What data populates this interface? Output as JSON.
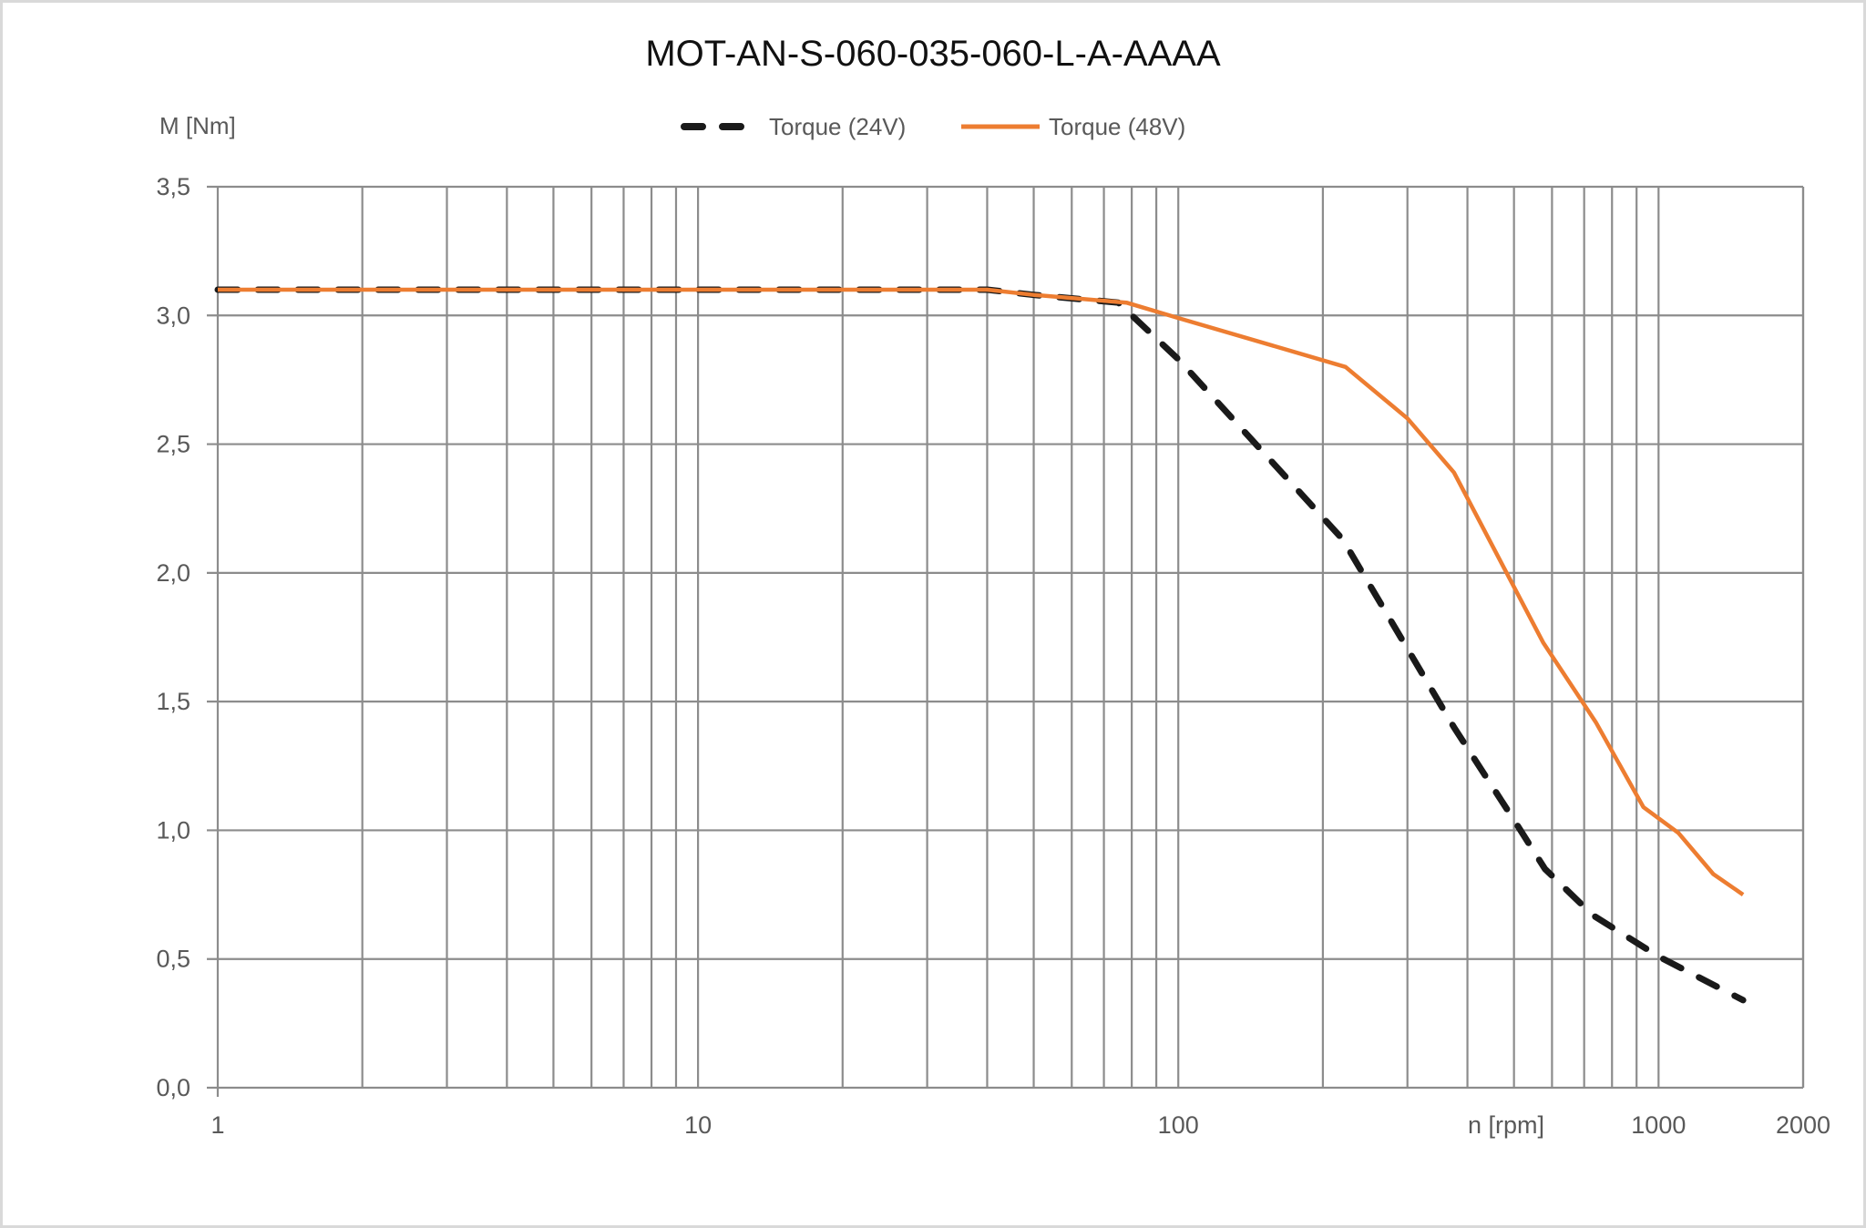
{
  "chart_data": {
    "type": "line",
    "title": "MOT-AN-S-060-035-060-L-A-AAAA",
    "ylabel": "M [Nm]",
    "xlabel": "n [rpm]",
    "x_scale": "log",
    "xlim": [
      1,
      2000
    ],
    "ylim": [
      0,
      3.5
    ],
    "x_tick_labels": [
      "1",
      "10",
      "100",
      "1000",
      "2000"
    ],
    "x_tick_values": [
      1,
      10,
      100,
      1000,
      2000
    ],
    "y_tick_labels": [
      "0,0",
      "0,5",
      "1,0",
      "1,5",
      "2,0",
      "2,5",
      "3,0",
      "3,5"
    ],
    "y_tick_values": [
      0,
      0.5,
      1.0,
      1.5,
      2.0,
      2.5,
      3.0,
      3.5
    ],
    "grid": true,
    "legend_position": "top",
    "series": [
      {
        "name": "Torque (24V)",
        "color": "#1a1a1a",
        "style": "dashed",
        "x": [
          1,
          40,
          50,
          75,
          100,
          220,
          375,
          500,
          580,
          730,
          1000,
          1500
        ],
        "y": [
          3.1,
          3.1,
          3.08,
          3.05,
          2.83,
          2.13,
          1.4,
          1.04,
          0.85,
          0.67,
          0.51,
          0.34
        ]
      },
      {
        "name": "Torque (48V)",
        "color": "#ed7d31",
        "style": "solid",
        "x": [
          1,
          40,
          50,
          78,
          100,
          223,
          300,
          375,
          575,
          740,
          930,
          1100,
          1300,
          1500
        ],
        "y": [
          3.1,
          3.1,
          3.08,
          3.05,
          2.99,
          2.8,
          2.6,
          2.39,
          1.73,
          1.42,
          1.09,
          0.99,
          0.83,
          0.75
        ]
      }
    ]
  }
}
